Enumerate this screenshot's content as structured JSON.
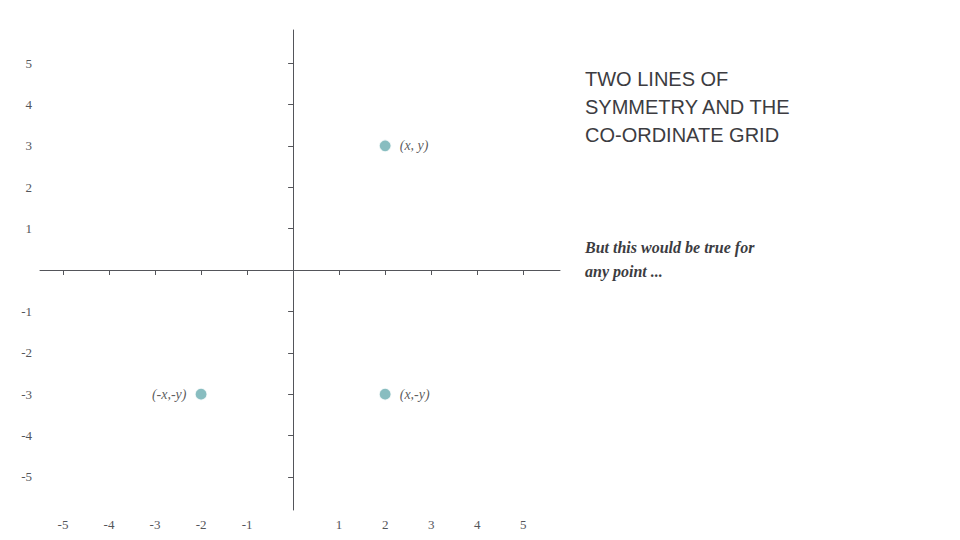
{
  "chart_data": {
    "type": "scatter",
    "title": "TWO LINES OF\nSYMMETRY AND THE\nCO-ORDINATE GRID",
    "subtitle": "But this would be true for\nany point ...",
    "x": [
      2,
      2,
      -2
    ],
    "values": [
      3,
      -3,
      -3
    ],
    "annotations": [
      "(x, y)",
      "(x,-y)",
      "(-x,-y)"
    ],
    "color": "#6aacb0",
    "marker": "circle",
    "xlim": [
      -5.5,
      5.8
    ],
    "ylim": [
      -5.8,
      5.8
    ],
    "xticks": [
      -5,
      -4,
      -3,
      -2,
      -1,
      1,
      2,
      3,
      4,
      5
    ],
    "yticks": [
      -5,
      -4,
      -3,
      -2,
      -1,
      1,
      2,
      3,
      4,
      5
    ],
    "grid": false
  }
}
